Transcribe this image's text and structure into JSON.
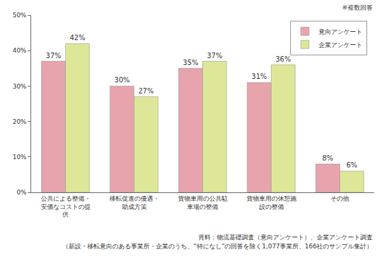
{
  "chart_data": {
    "type": "bar",
    "categories": [
      "公共による整備・安価なコストの提供",
      "移転促進の優遇・助成方策",
      "貨物車用の公共駐車場の整備",
      "貨物車用の休憩施設の整備",
      "その他"
    ],
    "series": [
      {
        "name": "意向アンケート",
        "color": "#e8a4ad",
        "values": [
          37,
          30,
          35,
          31,
          8
        ],
        "value_labels": [
          "37%",
          "30%",
          "35%",
          "31%",
          "8%"
        ]
      },
      {
        "name": "企業アンケート",
        "color": "#dde797",
        "values": [
          42,
          27,
          37,
          36,
          6
        ],
        "value_labels": [
          "42%",
          "27%",
          "37%",
          "36%",
          "6%"
        ]
      }
    ],
    "ylim": [
      0,
      50
    ],
    "yticks": [
      {
        "value": 0,
        "label": "0%"
      },
      {
        "value": 10,
        "label": "10%"
      },
      {
        "value": 20,
        "label": "20%"
      },
      {
        "value": 30,
        "label": "30%"
      },
      {
        "value": 40,
        "label": "40%"
      },
      {
        "value": 50,
        "label": "50%"
      }
    ],
    "annotations": [
      "※複数回答",
      "資料：物流基礎調査（意向アンケート）、企業アンケート調査",
      "（新設・移転意向のある事業所・企業のうち、“特になし”の回答を除く1,077事業所、166社のサンプル集計）"
    ],
    "grid": false,
    "legend": "upper right",
    "data_labels": true
  }
}
